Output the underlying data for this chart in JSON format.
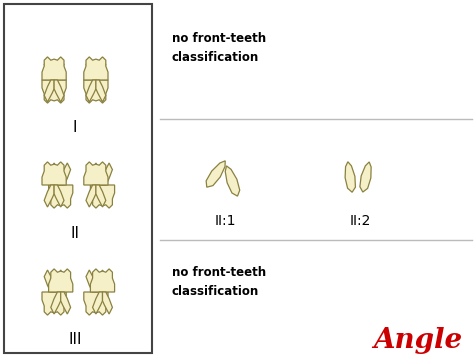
{
  "bg_color": "#ffffff",
  "left_box_border": "#444444",
  "tooth_fill": "#f5f0c8",
  "tooth_outline": "#8a8040",
  "divider_color": "#bbbbbb",
  "label_I": "I",
  "label_II": "II",
  "label_III": "III",
  "label_II1": "II:1",
  "label_II2": "II:2",
  "text_no_front_top": "no front-teeth\nclassification",
  "text_no_front_bot": "no front-teeth\nclassification",
  "text_angle": "Angle",
  "angle_color": "#cc0000",
  "figsize": [
    4.74,
    3.57
  ],
  "dpi": 100
}
